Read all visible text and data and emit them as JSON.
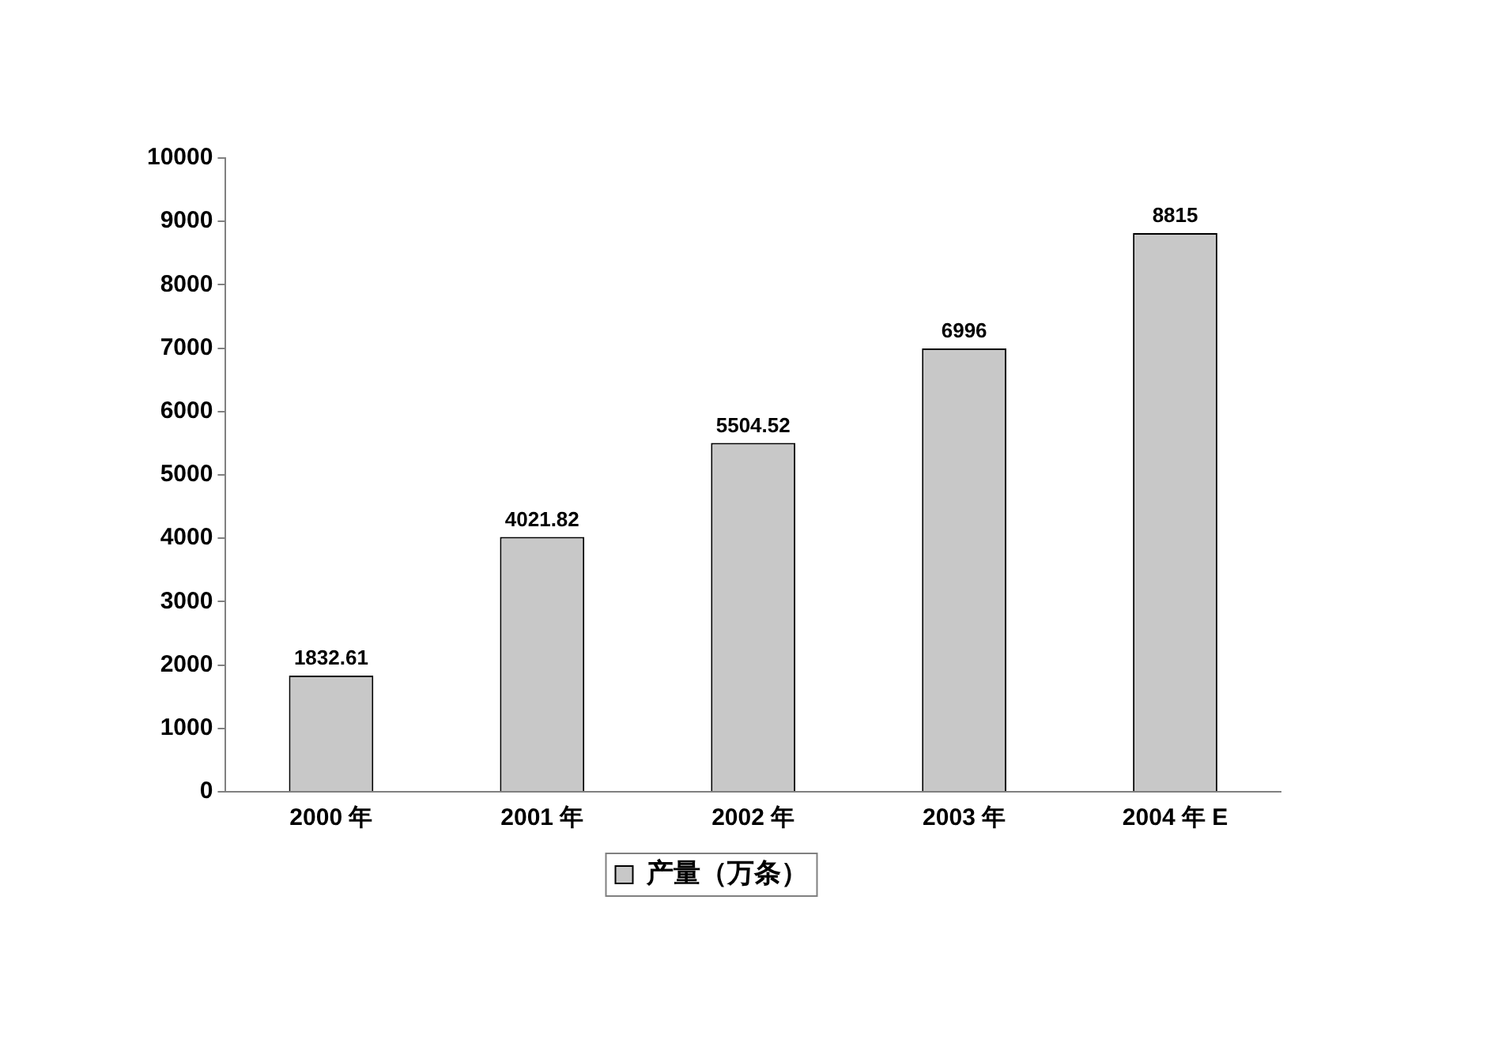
{
  "chart_data": {
    "type": "bar",
    "categories": [
      "2000 年",
      "2001 年",
      "2002 年",
      "2003 年",
      "2004 年 E"
    ],
    "series": [
      {
        "name": "产量（万条）",
        "color": "#c8c8c8",
        "values": [
          1832.61,
          4021.82,
          5504.52,
          6996,
          8815
        ]
      }
    ],
    "ylim": [
      0,
      10000
    ],
    "yticks": [
      0,
      1000,
      2000,
      3000,
      4000,
      5000,
      6000,
      7000,
      8000,
      9000,
      10000
    ],
    "grid": false,
    "legend": "bottom",
    "data_labels": true
  }
}
